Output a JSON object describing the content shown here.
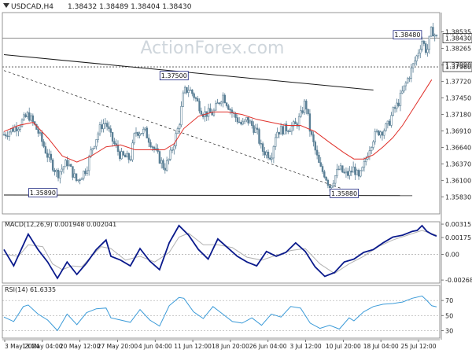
{
  "header": {
    "instrument_label": "USDCAD,H4",
    "ohlc": "1.38432 1.38489 1.38404 1.38430"
  },
  "watermark": "ActionForex.com",
  "colors": {
    "candle": "#5a7f95",
    "ema": "#e0302a",
    "trendline": "#1a1a1a",
    "macd_line": "#0a1a8c",
    "macd_signal": "#b3b3b3",
    "rsi_line": "#3a9ad8",
    "annotation_box": "#1a237e"
  },
  "chart_data": [
    {
      "type": "candlestick",
      "name": "price",
      "ylim": [
        1.3555,
        1.3885
      ],
      "yticks": [
        "1.38535",
        "1.38265",
        "1.37990",
        "1.37720",
        "1.37450",
        "1.37180",
        "1.36910",
        "1.36640",
        "1.36370",
        "1.36100",
        "1.35830"
      ],
      "xticks": [
        "3 May 2024",
        "13 May 04:00",
        "20 May 12:00",
        "27 May 20:00",
        "4 Jun 04:00",
        "11 Jun 12:00",
        "18 Jun 20:00",
        "26 Jun 04:00",
        "3 Jul 12:00",
        "10 Jul 20:00",
        "18 Jul 04:00",
        "25 Jul 12:00"
      ],
      "close_path": [
        [
          0,
          1.3685
        ],
        [
          3,
          1.37
        ],
        [
          5,
          1.3718
        ],
        [
          7,
          1.369
        ],
        [
          9,
          1.365
        ],
        [
          11,
          1.362
        ],
        [
          13,
          1.364
        ],
        [
          15,
          1.3608
        ],
        [
          17,
          1.363
        ],
        [
          18,
          1.366
        ],
        [
          20,
          1.37
        ],
        [
          21,
          1.3705
        ],
        [
          22,
          1.368
        ],
        [
          24,
          1.365
        ],
        [
          26,
          1.3645
        ],
        [
          27,
          1.369
        ],
        [
          29,
          1.369
        ],
        [
          31,
          1.366
        ],
        [
          33,
          1.363
        ],
        [
          34,
          1.3645
        ],
        [
          36,
          1.37
        ],
        [
          37,
          1.3755
        ],
        [
          38,
          1.376
        ],
        [
          39,
          1.375
        ],
        [
          41,
          1.372
        ],
        [
          43,
          1.372
        ],
        [
          45,
          1.375
        ],
        [
          47,
          1.372
        ],
        [
          49,
          1.37
        ],
        [
          50,
          1.371
        ],
        [
          52,
          1.369
        ],
        [
          53,
          1.366
        ],
        [
          55,
          1.365
        ],
        [
          56,
          1.369
        ],
        [
          58,
          1.3695
        ],
        [
          60,
          1.37
        ],
        [
          61,
          1.3715
        ],
        [
          62,
          1.374
        ],
        [
          63,
          1.369
        ],
        [
          64,
          1.366
        ],
        [
          65,
          1.363
        ],
        [
          66,
          1.362
        ],
        [
          67,
          1.36
        ],
        [
          68,
          1.3615
        ],
        [
          69,
          1.363
        ],
        [
          70,
          1.362
        ],
        [
          71,
          1.362
        ],
        [
          72,
          1.363
        ],
        [
          73,
          1.3612
        ],
        [
          74,
          1.3632
        ],
        [
          75,
          1.366
        ],
        [
          76,
          1.368
        ],
        [
          77,
          1.369
        ],
        [
          78,
          1.3692
        ],
        [
          79,
          1.37
        ],
        [
          80,
          1.3722
        ],
        [
          81,
          1.3735
        ],
        [
          82,
          1.3755
        ],
        [
          83,
          1.3775
        ],
        [
          84,
          1.3795
        ],
        [
          85,
          1.3815
        ],
        [
          86,
          1.384
        ],
        [
          87,
          1.382
        ],
        [
          88,
          1.3858
        ],
        [
          89,
          1.3843
        ]
      ],
      "ema_path": [
        [
          0,
          1.369
        ],
        [
          3,
          1.37
        ],
        [
          6,
          1.3705
        ],
        [
          9,
          1.368
        ],
        [
          12,
          1.365
        ],
        [
          15,
          1.364
        ],
        [
          18,
          1.365
        ],
        [
          21,
          1.3665
        ],
        [
          24,
          1.3668
        ],
        [
          27,
          1.366
        ],
        [
          30,
          1.366
        ],
        [
          33,
          1.366
        ],
        [
          35,
          1.367
        ],
        [
          37,
          1.3695
        ],
        [
          40,
          1.3715
        ],
        [
          43,
          1.3722
        ],
        [
          46,
          1.3722
        ],
        [
          49,
          1.3718
        ],
        [
          52,
          1.371
        ],
        [
          55,
          1.3705
        ],
        [
          58,
          1.37
        ],
        [
          61,
          1.37
        ],
        [
          64,
          1.369
        ],
        [
          67,
          1.3672
        ],
        [
          70,
          1.3655
        ],
        [
          72,
          1.3645
        ],
        [
          74,
          1.3645
        ],
        [
          76,
          1.3652
        ],
        [
          78,
          1.3665
        ],
        [
          80,
          1.368
        ],
        [
          82,
          1.37
        ],
        [
          84,
          1.3725
        ],
        [
          86,
          1.375
        ],
        [
          88,
          1.3775
        ]
      ],
      "horizontal_levels": [
        {
          "value": 1.3796,
          "label": "1.37960",
          "style": "dotted"
        },
        {
          "value": 1.3843,
          "label": "1.38430",
          "style": "solid"
        }
      ],
      "trendlines": [
        {
          "points": [
            [
              0,
              1.3816
            ],
            [
              76,
              1.3758
            ]
          ],
          "style": "solid"
        },
        {
          "points": [
            [
              0,
              1.379
            ],
            [
              70,
              1.3595
            ]
          ],
          "style": "dashed"
        },
        {
          "points": [
            [
              0,
              1.3586
            ],
            [
              84,
              1.3585
            ]
          ],
          "style": "solid"
        }
      ],
      "annotations": [
        {
          "text": "1.37500",
          "x": 35,
          "y": 1.3781
        },
        {
          "text": "1.35890",
          "x": 8,
          "y": 1.3589
        },
        {
          "text": "1.35880",
          "x": 70,
          "y": 1.3588
        },
        {
          "text": "1.38480",
          "x": 83,
          "y": 1.3848
        }
      ]
    },
    {
      "type": "line",
      "name": "macd",
      "label": "MACD(12,26,9) 0.001948 0.002041",
      "ylim": [
        -0.003,
        0.0034
      ],
      "yticks": [
        "0.00315",
        "0.00175",
        "0.00",
        "-0.00268"
      ],
      "macd_path": [
        [
          0,
          0.0005
        ],
        [
          2,
          -0.0012
        ],
        [
          4,
          0.001
        ],
        [
          5,
          0.0021
        ],
        [
          7,
          0.0005
        ],
        [
          9,
          -0.0008
        ],
        [
          11,
          -0.0025
        ],
        [
          13,
          -0.0008
        ],
        [
          15,
          -0.0021
        ],
        [
          17,
          -0.0009
        ],
        [
          19,
          0.0005
        ],
        [
          21,
          0.0015
        ],
        [
          22,
          -0.0002
        ],
        [
          24,
          -0.0006
        ],
        [
          26,
          -0.0012
        ],
        [
          28,
          0.0006
        ],
        [
          30,
          -0.0007
        ],
        [
          32,
          -0.0016
        ],
        [
          34,
          0.0012
        ],
        [
          36,
          0.003
        ],
        [
          38,
          0.002
        ],
        [
          40,
          0.0005
        ],
        [
          42,
          -0.0005
        ],
        [
          44,
          0.0016
        ],
        [
          46,
          0.0007
        ],
        [
          48,
          -0.0002
        ],
        [
          50,
          -0.0008
        ],
        [
          52,
          -0.0012
        ],
        [
          54,
          0.0003
        ],
        [
          56,
          -0.0002
        ],
        [
          58,
          0.0002
        ],
        [
          60,
          0.0012
        ],
        [
          62,
          0.0003
        ],
        [
          64,
          -0.0013
        ],
        [
          66,
          -0.0023
        ],
        [
          68,
          -0.0019
        ],
        [
          70,
          -0.0008
        ],
        [
          72,
          -0.0005
        ],
        [
          74,
          0.0002
        ],
        [
          76,
          0.0005
        ],
        [
          78,
          0.0012
        ],
        [
          80,
          0.0018
        ],
        [
          82,
          0.002
        ],
        [
          84,
          0.0024
        ],
        [
          85,
          0.0025
        ],
        [
          86,
          0.003
        ],
        [
          87,
          0.0024
        ],
        [
          88,
          0.0021
        ],
        [
          89,
          0.0019
        ]
      ],
      "signal_path": [
        [
          0,
          0.0
        ],
        [
          3,
          -0.0002
        ],
        [
          5,
          0.001
        ],
        [
          8,
          0.0008
        ],
        [
          10,
          -0.001
        ],
        [
          12,
          -0.0016
        ],
        [
          14,
          -0.0012
        ],
        [
          16,
          -0.0013
        ],
        [
          18,
          -0.0002
        ],
        [
          20,
          0.0008
        ],
        [
          22,
          0.0006
        ],
        [
          25,
          -0.0006
        ],
        [
          28,
          -0.0002
        ],
        [
          31,
          -0.0008
        ],
        [
          34,
          0.0002
        ],
        [
          36,
          0.0018
        ],
        [
          38,
          0.0022
        ],
        [
          41,
          0.001
        ],
        [
          44,
          0.001
        ],
        [
          47,
          0.0007
        ],
        [
          50,
          -0.0003
        ],
        [
          53,
          -0.0006
        ],
        [
          56,
          -0.0001
        ],
        [
          59,
          0.0004
        ],
        [
          62,
          0.0006
        ],
        [
          65,
          -0.001
        ],
        [
          68,
          -0.002
        ],
        [
          71,
          -0.001
        ],
        [
          74,
          -0.0002
        ],
        [
          77,
          0.0008
        ],
        [
          80,
          0.0015
        ],
        [
          83,
          0.002
        ],
        [
          86,
          0.0025
        ],
        [
          89,
          0.002
        ]
      ]
    },
    {
      "type": "line",
      "name": "rsi",
      "label": "RSI(14) 61.6335",
      "ylim": [
        20,
        90
      ],
      "yticks": [
        "70",
        "50",
        "30"
      ],
      "levels": [
        30,
        50,
        70
      ],
      "rsi_path": [
        [
          0,
          48
        ],
        [
          2,
          42
        ],
        [
          4,
          62
        ],
        [
          5,
          64
        ],
        [
          7,
          52
        ],
        [
          9,
          44
        ],
        [
          11,
          30
        ],
        [
          13,
          52
        ],
        [
          15,
          38
        ],
        [
          17,
          54
        ],
        [
          19,
          59
        ],
        [
          21,
          60
        ],
        [
          22,
          47
        ],
        [
          24,
          44
        ],
        [
          26,
          41
        ],
        [
          28,
          58
        ],
        [
          30,
          44
        ],
        [
          32,
          36
        ],
        [
          34,
          63
        ],
        [
          36,
          74
        ],
        [
          37,
          73
        ],
        [
          39,
          55
        ],
        [
          41,
          46
        ],
        [
          43,
          62
        ],
        [
          45,
          52
        ],
        [
          47,
          42
        ],
        [
          49,
          40
        ],
        [
          51,
          47
        ],
        [
          53,
          37
        ],
        [
          55,
          52
        ],
        [
          57,
          48
        ],
        [
          59,
          62
        ],
        [
          61,
          60
        ],
        [
          63,
          40
        ],
        [
          65,
          33
        ],
        [
          67,
          37
        ],
        [
          69,
          32
        ],
        [
          71,
          47
        ],
        [
          72,
          43
        ],
        [
          74,
          55
        ],
        [
          76,
          62
        ],
        [
          78,
          65
        ],
        [
          80,
          66
        ],
        [
          82,
          68
        ],
        [
          84,
          73
        ],
        [
          86,
          76
        ],
        [
          87,
          70
        ],
        [
          88,
          63
        ],
        [
          89,
          61.6
        ]
      ]
    }
  ]
}
